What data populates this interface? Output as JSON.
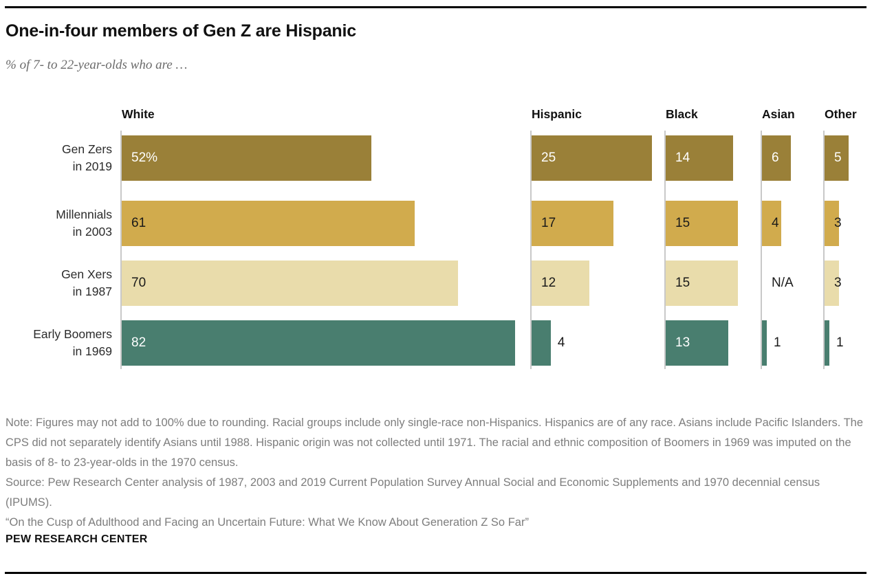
{
  "header": {
    "title": "One-in-four members of Gen Z are Hispanic",
    "subtitle": "% of 7- to 22-year-olds who are …"
  },
  "chart_data": {
    "type": "bar",
    "orientation": "horizontal",
    "unit": "%",
    "xlim": [
      0,
      100
    ],
    "grid": false,
    "axis_color": "#c8c8c8",
    "columns": [
      "White",
      "Hispanic",
      "Black",
      "Asian",
      "Other"
    ],
    "rows": [
      {
        "label": [
          "Gen Zers",
          "in 2019"
        ],
        "color": "#9a8038",
        "value_text_color": "#ffffff",
        "values": [
          52,
          25,
          14,
          6,
          5
        ],
        "value_labels": [
          "52%",
          "25",
          "14",
          "6",
          "5"
        ],
        "label_placement": [
          "inside",
          "inside",
          "inside",
          "inside",
          "inside"
        ]
      },
      {
        "label": [
          "Millennials",
          "in 2003"
        ],
        "color": "#d1ab4d",
        "value_text_color": "#1a1a1a",
        "values": [
          61,
          17,
          15,
          4,
          3
        ],
        "value_labels": [
          "61",
          "17",
          "15",
          "4",
          "3"
        ],
        "label_placement": [
          "inside",
          "inside",
          "inside",
          "inside",
          "inside"
        ]
      },
      {
        "label": [
          "Gen Xers",
          "in 1987"
        ],
        "color": "#e9dcab",
        "value_text_color": "#1a1a1a",
        "values": [
          70,
          12,
          15,
          null,
          3
        ],
        "value_labels": [
          "70",
          "12",
          "15",
          "N/A",
          "3"
        ],
        "label_placement": [
          "inside",
          "inside",
          "inside",
          "inside",
          "inside"
        ]
      },
      {
        "label": [
          "Early Boomers",
          "in 1969"
        ],
        "color": "#497e6f",
        "value_text_color": "#ffffff",
        "values": [
          82,
          4,
          13,
          1,
          1
        ],
        "value_labels": [
          "82",
          "4",
          "13",
          "1",
          "1"
        ],
        "label_placement": [
          "inside",
          "outside",
          "inside",
          "outside",
          "outside"
        ]
      }
    ]
  },
  "notes": {
    "note": "Note: Figures may not add to 100% due to rounding. Racial groups include only single-race non-Hispanics. Hispanics are of any race. Asians include Pacific Islanders. The CPS did not separately identify Asians until 1988. Hispanic origin was not collected until 1971. The racial and ethnic composition of Boomers in 1969 was imputed on the basis of 8- to 23-year-olds in the 1970 census.",
    "source": "Source: Pew Research Center analysis of 1987, 2003 and 2019 Current Population Survey Annual Social and Economic Supplements and 1970 decennial census (IPUMS).",
    "report": "“On the Cusp of Adulthood and Facing an Uncertain Future: What We Know About Generation Z So Far”"
  },
  "footer": {
    "brand": "PEW RESEARCH CENTER"
  }
}
